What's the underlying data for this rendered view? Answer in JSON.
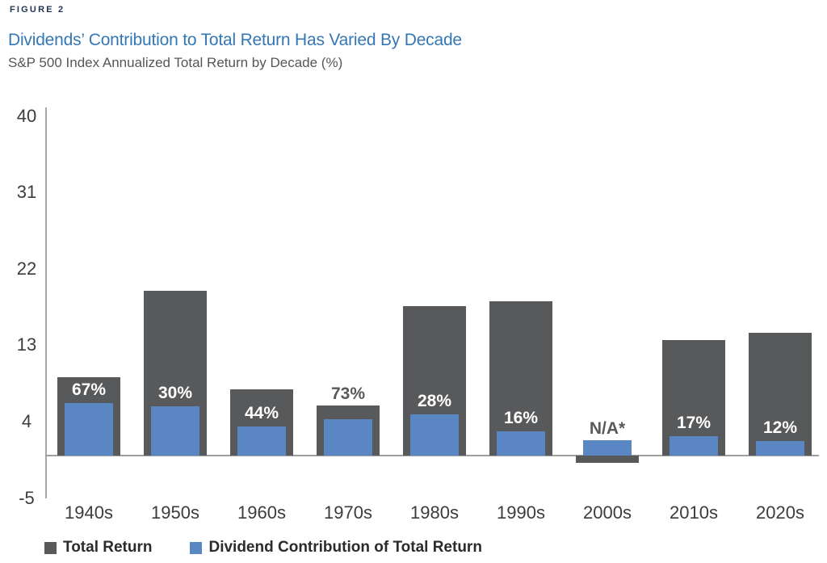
{
  "figure_label": "FIGURE 2",
  "header": {
    "title": "Dividends’ Contribution to Total Return Has Varied By Decade",
    "subtitle": "S&P 500 Index Annualized Total Return by Decade (%)"
  },
  "colors": {
    "total_return_bar": "#58595b",
    "dividend_bar": "#5a86c3",
    "title_blue": "#3477b5",
    "figure_label_navy": "#1c3452",
    "axis_line": "#a8a8a8",
    "inside_label": "#ffffff",
    "outside_label": "#58595b"
  },
  "chart_data": {
    "type": "bar",
    "title": "Dividends’ Contribution to Total Return Has Varied By Decade",
    "subtitle": "S&P 500 Index Annualized Total Return by Decade (%)",
    "categories": [
      "1940s",
      "1950s",
      "1960s",
      "1970s",
      "1980s",
      "1990s",
      "2000s",
      "2010s",
      "2020s"
    ],
    "series": [
      {
        "name": "Total Return",
        "color": "#58595b",
        "values": [
          9.2,
          19.4,
          7.8,
          5.9,
          17.6,
          18.2,
          -0.9,
          13.6,
          14.5
        ]
      },
      {
        "name": "Dividend Contribution of Total Return",
        "color": "#5a86c3",
        "values": [
          6.2,
          5.8,
          3.4,
          4.3,
          4.9,
          2.9,
          1.8,
          2.3,
          1.7
        ]
      }
    ],
    "bar_labels": [
      "67%",
      "30%",
      "44%",
      "73%",
      "28%",
      "16%",
      "N/A*",
      "17%",
      "12%"
    ],
    "yticks": [
      40,
      31,
      22,
      13,
      4,
      -5
    ],
    "ylim": [
      -5,
      40
    ],
    "grid": false,
    "legend_position": "bottom"
  }
}
